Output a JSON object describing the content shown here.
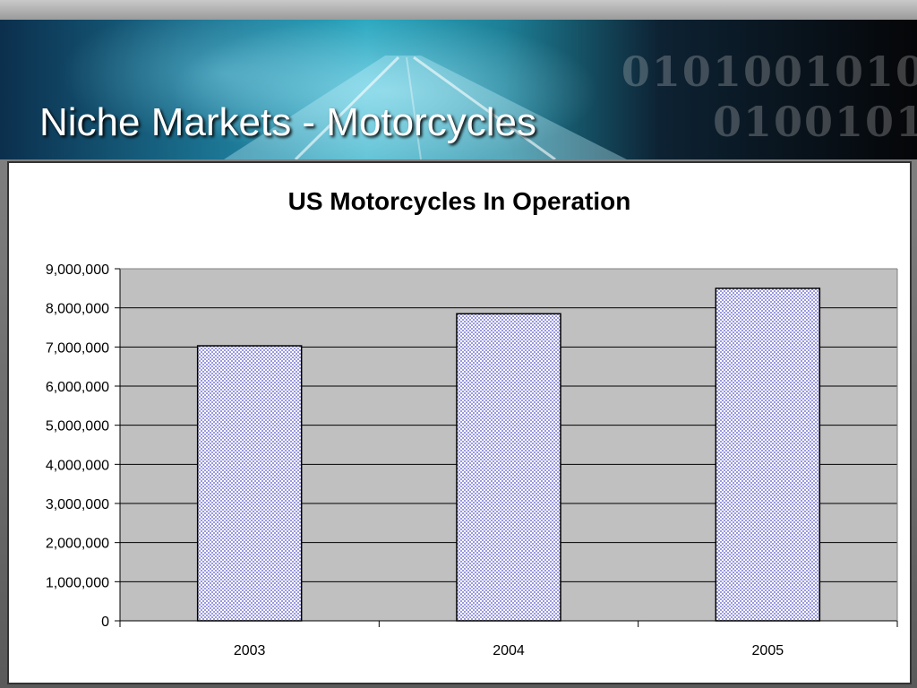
{
  "slide": {
    "title": "Niche Markets - Motorcycles",
    "binary_decoration": [
      "0101001010",
      "0100101"
    ]
  },
  "chart_data": {
    "type": "bar",
    "title": "US Motorcycles In Operation",
    "categories": [
      "2003",
      "2004",
      "2005"
    ],
    "values": [
      7030000,
      7850000,
      8500000
    ],
    "ylim": [
      0,
      9000000
    ],
    "yticks": [
      "0",
      "1,000,000",
      "2,000,000",
      "3,000,000",
      "4,000,000",
      "5,000,000",
      "6,000,000",
      "7,000,000",
      "8,000,000",
      "9,000,000"
    ],
    "ytick_values": [
      0,
      1000000,
      2000000,
      3000000,
      4000000,
      5000000,
      6000000,
      7000000,
      8000000,
      9000000
    ],
    "grid": true,
    "legend": "none",
    "colors": {
      "plot_background": "#c0c0c0",
      "bar_fill": "#ffffff",
      "bar_pattern": "#9a9ae0",
      "bar_border": "#000000",
      "gridline": "#000000"
    }
  }
}
